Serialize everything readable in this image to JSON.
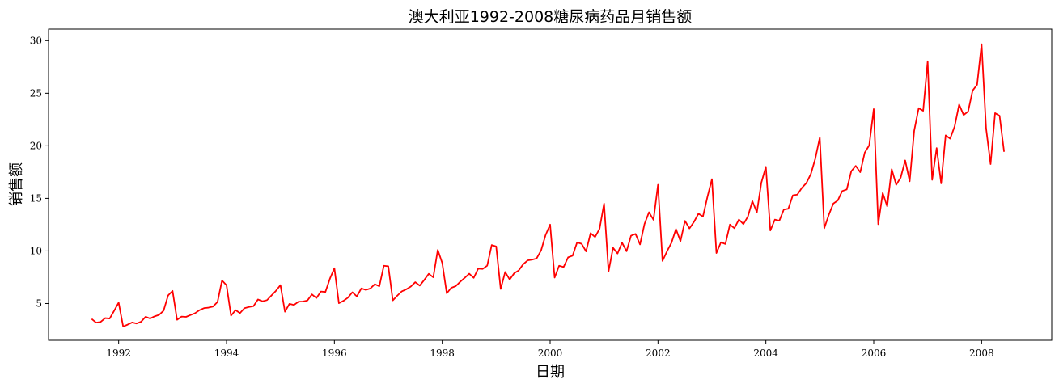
{
  "chart_data": {
    "type": "line",
    "title": "澳大利亚1992-2008糖尿病药品月销售额",
    "xlabel": "日期",
    "ylabel": "销售额",
    "x_tick_labels": [
      "1992",
      "1994",
      "1996",
      "1998",
      "2000",
      "2002",
      "2004",
      "2006",
      "2008"
    ],
    "y_tick_labels": [
      "5",
      "10",
      "15",
      "20",
      "25",
      "30"
    ],
    "xlim": [
      1990.7,
      2009.3
    ],
    "ylim": [
      1.5,
      31.1
    ],
    "grid": false,
    "legend": "none",
    "line_color": "#ff0000",
    "start": "1991-07",
    "frequency": "monthly",
    "series": [
      {
        "values": [
          3.53,
          3.18,
          3.25,
          3.61,
          3.57,
          4.31,
          5.09,
          2.81,
          2.99,
          3.2,
          3.1,
          3.27,
          3.74,
          3.57,
          3.78,
          3.92,
          4.32,
          5.77,
          6.2,
          3.45,
          3.76,
          3.73,
          3.91,
          4.08,
          4.37,
          4.56,
          4.61,
          4.71,
          5.15,
          7.19,
          6.74,
          3.85,
          4.37,
          4.09,
          4.56,
          4.67,
          4.75,
          5.39,
          5.21,
          5.32,
          5.77,
          6.21,
          6.75,
          4.22,
          4.97,
          4.86,
          5.17,
          5.19,
          5.29,
          5.87,
          5.52,
          6.14,
          6.1,
          7.36,
          8.36,
          5.03,
          5.25,
          5.55,
          6.07,
          5.68,
          6.44,
          6.29,
          6.43,
          6.84,
          6.64,
          8.59,
          8.54,
          5.3,
          5.75,
          6.16,
          6.35,
          6.61,
          7.03,
          6.7,
          7.24,
          7.83,
          7.49,
          10.1,
          8.85,
          5.97,
          6.49,
          6.65,
          7.07,
          7.44,
          7.84,
          7.44,
          8.32,
          8.29,
          8.6,
          10.56,
          10.43,
          6.38,
          8.0,
          7.28,
          7.88,
          8.14,
          8.73,
          9.1,
          9.17,
          9.29,
          10.06,
          11.52,
          12.51,
          7.46,
          8.59,
          8.47,
          9.39,
          9.55,
          10.81,
          10.68,
          9.95,
          11.69,
          11.33,
          12.11,
          14.5,
          8.05,
          10.3,
          9.75,
          10.79,
          9.97,
          11.45,
          11.62,
          10.62,
          12.57,
          13.68,
          12.96,
          16.3,
          9.05,
          9.96,
          10.78,
          12.08,
          10.92,
          12.86,
          12.14,
          12.76,
          13.55,
          13.27,
          15.14,
          16.83,
          9.8,
          10.82,
          10.66,
          12.51,
          12.16,
          12.99,
          12.55,
          13.27,
          14.74,
          13.67,
          16.5,
          18.0,
          11.94,
          12.98,
          12.88,
          13.94,
          14.01,
          15.29,
          15.36,
          15.99,
          16.45,
          17.31,
          18.78,
          20.79,
          12.16,
          13.43,
          14.5,
          14.8,
          15.7,
          15.85,
          17.58,
          18.09,
          17.49,
          19.35,
          20.05,
          23.5,
          12.54,
          15.51,
          14.24,
          17.78,
          16.29,
          16.98,
          18.61,
          16.62,
          21.43,
          23.58,
          23.33,
          28.04,
          16.76,
          19.79,
          16.42,
          21.0,
          20.68,
          21.84,
          23.93,
          22.93,
          23.26,
          25.25,
          25.81,
          29.67,
          21.65,
          18.26,
          23.11,
          22.86,
          19.43
        ]
      }
    ]
  }
}
